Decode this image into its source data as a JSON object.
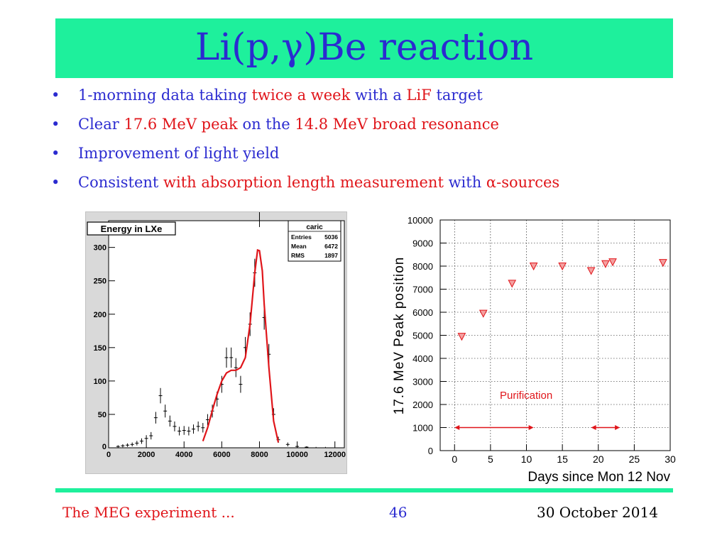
{
  "colors": {
    "accent_green": "#1ef09c",
    "text_blue": "#2b2bd0",
    "highlight_red": "#e0151a"
  },
  "slide": {
    "title": "Li(p,γ)Be reaction",
    "bullets": [
      {
        "parts": [
          "1-morning data taking ",
          "twice a week",
          " with a ",
          "LiF",
          " target"
        ]
      },
      {
        "parts": [
          "Clear ",
          "17.6 MeV peak",
          " on the ",
          "14.8 MeV broad resonance"
        ]
      },
      {
        "parts": [
          "Improvement of light yield"
        ]
      },
      {
        "parts": [
          "Consistent ",
          "with absorption length measurement",
          " with ",
          "α",
          "-sources"
        ]
      }
    ]
  },
  "footer": {
    "left": "The MEG experiment ...",
    "page": "46",
    "date": "30 October 2014"
  },
  "chart_data": [
    {
      "type": "line",
      "title": "Energy in LXe",
      "stats_box": {
        "name": "caric",
        "rows": [
          {
            "label": "Entries",
            "value": "5036"
          },
          {
            "label": "Mean",
            "value": "6472"
          },
          {
            "label": "RMS",
            "value": "1897"
          }
        ]
      },
      "xlim": [
        0,
        12500
      ],
      "ylim": [
        0,
        340
      ],
      "xticks": [
        "0",
        "2000",
        "4000",
        "6000",
        "8000",
        "10000",
        "12000"
      ],
      "xtick_values": [
        0,
        2000,
        4000,
        6000,
        8000,
        10000,
        12000
      ],
      "yticks": [
        "50",
        "100",
        "150",
        "200",
        "250",
        "300"
      ],
      "ytick_values": [
        50,
        100,
        150,
        200,
        250,
        300
      ],
      "origin_label": "0",
      "series": [
        {
          "points": [
            [
              500,
              2
            ],
            [
              750,
              3
            ],
            [
              1000,
              4
            ],
            [
              1250,
              5
            ],
            [
              1500,
              7
            ],
            [
              1750,
              10
            ],
            [
              2000,
              14
            ],
            [
              2250,
              18
            ],
            [
              2500,
              45
            ],
            [
              2750,
              78
            ],
            [
              3000,
              55
            ],
            [
              3250,
              40
            ],
            [
              3500,
              32
            ],
            [
              3750,
              25
            ],
            [
              4000,
              26
            ],
            [
              4250,
              25
            ],
            [
              4500,
              28
            ],
            [
              4750,
              32
            ],
            [
              5000,
              30
            ],
            [
              5250,
              42
            ],
            [
              5500,
              55
            ],
            [
              5750,
              73
            ],
            [
              6000,
              95
            ],
            [
              6250,
              135
            ],
            [
              6500,
              135
            ],
            [
              6750,
              120
            ],
            [
              7000,
              95
            ],
            [
              7250,
              150
            ],
            [
              7500,
              185
            ],
            [
              7750,
              262
            ],
            [
              8000,
              355
            ],
            [
              8250,
              195
            ],
            [
              8500,
              140
            ],
            [
              8750,
              50
            ],
            [
              9000,
              12
            ],
            [
              9500,
              5
            ],
            [
              10000,
              2
            ],
            [
              10500,
              1
            ],
            [
              11000,
              0
            ],
            [
              11500,
              0
            ]
          ]
        },
        {
          "color": "#e0151a",
          "points": [
            [
              5000,
              10
            ],
            [
              5250,
              30
            ],
            [
              5500,
              56
            ],
            [
              5750,
              80
            ],
            [
              6000,
              100
            ],
            [
              6250,
              112
            ],
            [
              6500,
              116
            ],
            [
              6750,
              116
            ],
            [
              7000,
              120
            ],
            [
              7250,
              135
            ],
            [
              7500,
              185
            ],
            [
              7750,
              262
            ],
            [
              7900,
              296
            ],
            [
              8000,
              295
            ],
            [
              8150,
              265
            ],
            [
              8250,
              215
            ],
            [
              8500,
              120
            ],
            [
              8750,
              40
            ],
            [
              9000,
              8
            ]
          ]
        }
      ]
    },
    {
      "type": "scatter",
      "xlabel": "Days since Mon 12 Nov",
      "ylabel": "17.6 MeV Peak position",
      "xlim": [
        -2,
        30
      ],
      "ylim": [
        0,
        10000
      ],
      "xticks": [
        "0",
        "5",
        "10",
        "15",
        "20",
        "25",
        "30"
      ],
      "xtick_values": [
        0,
        5,
        10,
        15,
        20,
        25,
        30
      ],
      "yticks": [
        "0",
        "1000",
        "2000",
        "3000",
        "4000",
        "5000",
        "6000",
        "7000",
        "8000",
        "9000",
        "10000"
      ],
      "ytick_values": [
        0,
        1000,
        2000,
        3000,
        4000,
        5000,
        6000,
        7000,
        8000,
        9000,
        10000
      ],
      "grid": true,
      "marker": "triangle-down",
      "marker_color": "#e0151a",
      "points": [
        [
          1,
          4950
        ],
        [
          4,
          5950
        ],
        [
          8,
          7250
        ],
        [
          11,
          8000
        ],
        [
          15,
          8000
        ],
        [
          19,
          7800
        ],
        [
          21,
          8100
        ],
        [
          22,
          8180
        ],
        [
          29,
          8150
        ]
      ],
      "annotation": {
        "text": "Purification",
        "color": "#e0151a"
      },
      "arrows": [
        {
          "from": 0,
          "to": 11
        },
        {
          "from": 19,
          "to": 23
        }
      ]
    }
  ]
}
